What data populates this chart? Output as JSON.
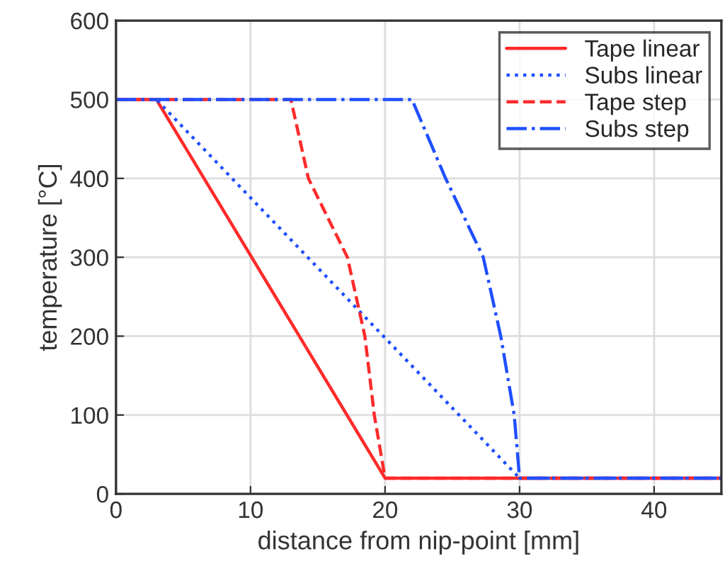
{
  "chart_data": {
    "type": "line",
    "xlabel": "distance from nip-point [mm]",
    "ylabel": "temperature [°C]",
    "xlim": [
      0,
      45
    ],
    "ylim": [
      0,
      600
    ],
    "xticks": [
      0,
      10,
      20,
      30,
      40
    ],
    "yticks": [
      0,
      100,
      200,
      300,
      400,
      500,
      600
    ],
    "grid": true,
    "legend": "top right",
    "marker": "none",
    "series": [
      {
        "name": "Tape linear",
        "color": "#ff2a2a",
        "line_style": "solid",
        "x": [
          0,
          3,
          20,
          45
        ],
        "values": [
          500,
          500,
          20,
          20
        ]
      },
      {
        "name": "Subs linear",
        "color": "#1f4fff",
        "line_style": "dotted",
        "x": [
          0,
          3,
          30,
          45
        ],
        "values": [
          500,
          500,
          20,
          20
        ]
      },
      {
        "name": "Tape step",
        "color": "#ff2a2a",
        "line_style": "dashed",
        "x": [
          0,
          13,
          14.3,
          17.2,
          18.5,
          19.2,
          20,
          45
        ],
        "values": [
          500,
          500,
          400,
          300,
          200,
          100,
          20,
          20
        ]
      },
      {
        "name": "Subs step",
        "color": "#1f4fff",
        "line_style": "dashdot",
        "x": [
          0,
          22,
          24.5,
          27.3,
          28.6,
          29.6,
          30,
          45
        ],
        "values": [
          500,
          500,
          400,
          300,
          200,
          100,
          20,
          20
        ]
      }
    ]
  }
}
